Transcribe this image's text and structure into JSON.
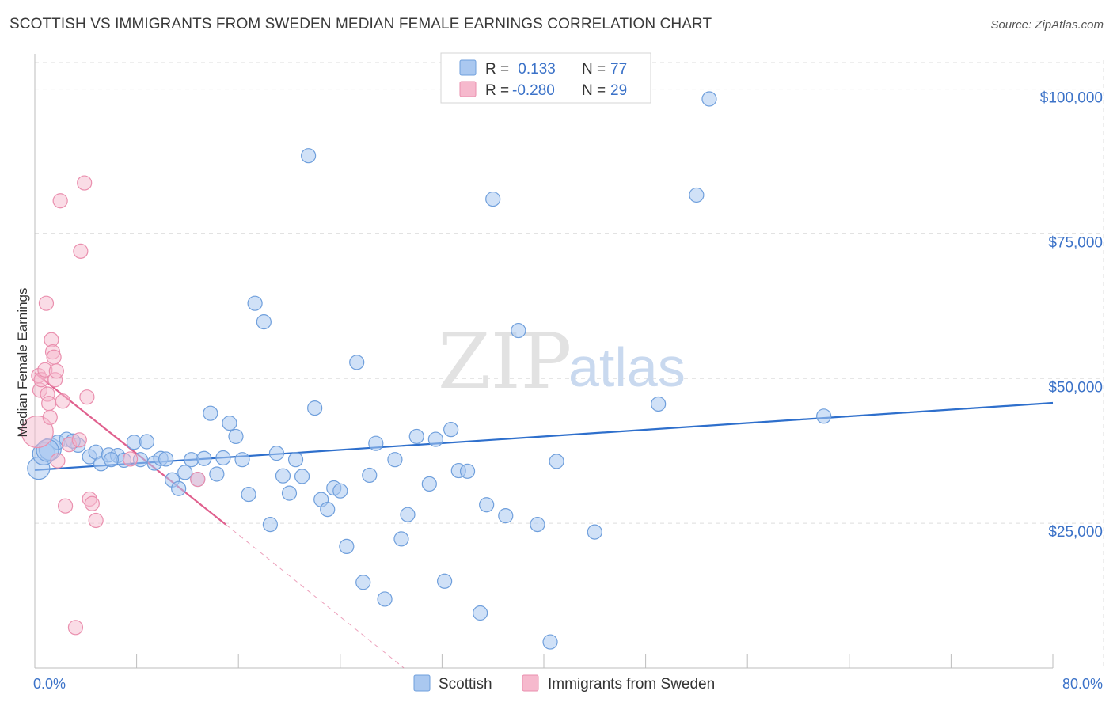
{
  "header": {
    "title": "SCOTTISH VS IMMIGRANTS FROM SWEDEN MEDIAN FEMALE EARNINGS CORRELATION CHART",
    "source": "Source: ZipAtlas.com"
  },
  "watermark": {
    "zip": "ZIP",
    "atlas": "atlas"
  },
  "chart_data": {
    "type": "scatter",
    "title": "SCOTTISH VS IMMIGRANTS FROM SWEDEN MEDIAN FEMALE EARNINGS CORRELATION CHART",
    "xlabel": "",
    "ylabel": "Median Female Earnings",
    "xlim": [
      0,
      80
    ],
    "ylim": [
      0,
      105000
    ],
    "x_tick_labels": {
      "min": "0.0%",
      "max": "80.0%"
    },
    "y_ticks": [
      {
        "value": 25000,
        "label": "$25,000"
      },
      {
        "value": 50000,
        "label": "$50,000"
      },
      {
        "value": 75000,
        "label": "$75,000"
      },
      {
        "value": 100000,
        "label": "$100,000"
      }
    ],
    "grid": true,
    "legend_position": "top-center",
    "colors": {
      "scottish_fill": "#aac8f0",
      "scottish_stroke": "#6f9fdc",
      "scottish_line": "#2e6fcc",
      "sweden_fill": "#f6b9cd",
      "sweden_stroke": "#ea8fae",
      "sweden_line": "#e0608e",
      "axis_text": "#3b72c8"
    },
    "legend": {
      "entries": [
        {
          "r_label": "R =",
          "r_value": " 0.133",
          "n_label": "N =",
          "n_value": "77"
        },
        {
          "r_label": "R =",
          "r_value": "-0.280",
          "n_label": "N =",
          "n_value": "29"
        }
      ]
    },
    "series": [
      {
        "name": "Scottish",
        "trend": {
          "x0": 0,
          "y0": 34200,
          "x1": 80,
          "y1": 45800
        },
        "points": [
          [
            0.3,
            34500
          ],
          [
            0.7,
            37000
          ],
          [
            1.2,
            37800
          ],
          [
            1.8,
            39000
          ],
          [
            2.5,
            39500
          ],
          [
            3.4,
            38500
          ],
          [
            3.0,
            39200
          ],
          [
            4.3,
            36500
          ],
          [
            4.8,
            37300
          ],
          [
            5.2,
            35300
          ],
          [
            5.8,
            36800
          ],
          [
            6.5,
            36700
          ],
          [
            7.0,
            35900
          ],
          [
            7.8,
            39000
          ],
          [
            8.3,
            36000
          ],
          [
            8.8,
            39100
          ],
          [
            9.4,
            35400
          ],
          [
            9.9,
            36200
          ],
          [
            10.3,
            36100
          ],
          [
            10.8,
            32500
          ],
          [
            11.3,
            31000
          ],
          [
            11.8,
            33800
          ],
          [
            12.3,
            36000
          ],
          [
            12.8,
            32600
          ],
          [
            13.3,
            36200
          ],
          [
            13.8,
            44000
          ],
          [
            14.3,
            33500
          ],
          [
            14.8,
            36300
          ],
          [
            15.3,
            42300
          ],
          [
            15.8,
            40000
          ],
          [
            16.3,
            36000
          ],
          [
            16.8,
            30000
          ],
          [
            17.3,
            63000
          ],
          [
            18.0,
            59800
          ],
          [
            18.5,
            24800
          ],
          [
            19.0,
            37100
          ],
          [
            19.5,
            33200
          ],
          [
            20.0,
            30200
          ],
          [
            20.5,
            36000
          ],
          [
            21.0,
            33100
          ],
          [
            21.5,
            88500
          ],
          [
            22.0,
            44900
          ],
          [
            22.5,
            29100
          ],
          [
            23.0,
            27400
          ],
          [
            23.5,
            31100
          ],
          [
            24.0,
            30600
          ],
          [
            24.5,
            21000
          ],
          [
            25.3,
            52800
          ],
          [
            25.8,
            14800
          ],
          [
            26.3,
            33300
          ],
          [
            26.8,
            38800
          ],
          [
            27.5,
            11900
          ],
          [
            28.3,
            36000
          ],
          [
            28.8,
            22300
          ],
          [
            29.3,
            26500
          ],
          [
            30.0,
            40000
          ],
          [
            31.0,
            31800
          ],
          [
            31.5,
            39500
          ],
          [
            32.2,
            15000
          ],
          [
            32.7,
            41200
          ],
          [
            33.3,
            34100
          ],
          [
            34.0,
            34000
          ],
          [
            35.0,
            9500
          ],
          [
            35.5,
            28200
          ],
          [
            36.0,
            81000
          ],
          [
            37.0,
            26300
          ],
          [
            38.0,
            58300
          ],
          [
            39.5,
            24800
          ],
          [
            40.5,
            4500
          ],
          [
            41.0,
            35700
          ],
          [
            44.0,
            23500
          ],
          [
            49.0,
            45600
          ],
          [
            52.0,
            81700
          ],
          [
            53.0,
            98300
          ],
          [
            62.0,
            43500
          ],
          [
            1.0,
            37600
          ],
          [
            6.0,
            36000
          ]
        ]
      },
      {
        "name": "Immigrants from Sweden",
        "trend": {
          "x0": 0,
          "y0": 51000,
          "x1": 15,
          "y1": 24800
        },
        "trend_dashed": {
          "x0": 15,
          "y0": 24800,
          "x1": 29,
          "y1": 0
        },
        "points": [
          [
            0.2,
            40800
          ],
          [
            0.3,
            50500
          ],
          [
            0.4,
            48000
          ],
          [
            0.5,
            49800
          ],
          [
            0.8,
            51500
          ],
          [
            0.9,
            63000
          ],
          [
            1.0,
            47300
          ],
          [
            1.1,
            45700
          ],
          [
            1.2,
            43300
          ],
          [
            1.3,
            56700
          ],
          [
            1.4,
            54600
          ],
          [
            1.5,
            53700
          ],
          [
            1.6,
            49800
          ],
          [
            1.7,
            51300
          ],
          [
            1.8,
            35800
          ],
          [
            2.0,
            80700
          ],
          [
            2.2,
            46100
          ],
          [
            2.4,
            28000
          ],
          [
            2.7,
            38600
          ],
          [
            3.2,
            7000
          ],
          [
            3.5,
            39400
          ],
          [
            3.6,
            72000
          ],
          [
            3.9,
            83800
          ],
          [
            4.1,
            46800
          ],
          [
            4.3,
            29200
          ],
          [
            4.5,
            28400
          ],
          [
            4.8,
            25500
          ],
          [
            7.5,
            36100
          ],
          [
            12.8,
            32600
          ]
        ]
      }
    ]
  },
  "bottom_legend": {
    "items": [
      {
        "label": "Scottish"
      },
      {
        "label": "Immigrants from Sweden"
      }
    ]
  }
}
